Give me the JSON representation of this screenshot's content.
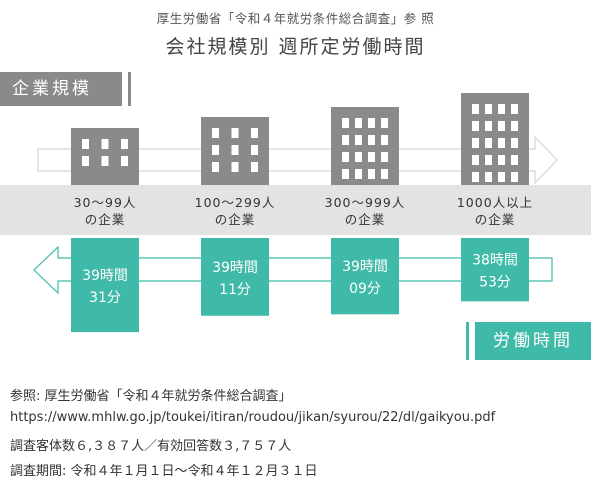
{
  "header": {
    "source_note": "厚生労働省「令和４年就労条件総合調査」参 照",
    "title": "会社規模別 週所定労働時間"
  },
  "labels": {
    "company_size": "企業規模",
    "working_hours": "労働時間"
  },
  "colors": {
    "building": "#8a8a8a",
    "teal": "#3fb9a8",
    "band": "#e3e3e3"
  },
  "chart_data": {
    "type": "bar",
    "categories": [
      {
        "line1": "30～99人",
        "line2": "の企業"
      },
      {
        "line1": "100～299人",
        "line2": "の企業"
      },
      {
        "line1": "300～999人",
        "line2": "の企業"
      },
      {
        "line1": "1000人以上",
        "line2": "の企業"
      }
    ],
    "values": [
      39.52,
      39.18,
      39.15,
      38.88
    ],
    "value_labels": [
      {
        "line1": "39時間",
        "line2": "31分"
      },
      {
        "line1": "39時間",
        "line2": "11分"
      },
      {
        "line1": "39時間",
        "line2": "09分"
      },
      {
        "line1": "38時間",
        "line2": "53分"
      }
    ],
    "xlabel": "企業規模",
    "ylabel": "労働時間"
  },
  "footer": {
    "reference": "参照: 厚生労働省「令和４年就労条件総合調査」",
    "url": "https://www.mhlw.go.jp/toukei/itiran/roudou/jikan/syurou/22/dl/gaikyou.pdf",
    "sample": "調査客体数６,３８７人／有効回答数３,７５７人",
    "period": "調査期間: 令和４年１月１日～令和４年１２月３１日"
  }
}
